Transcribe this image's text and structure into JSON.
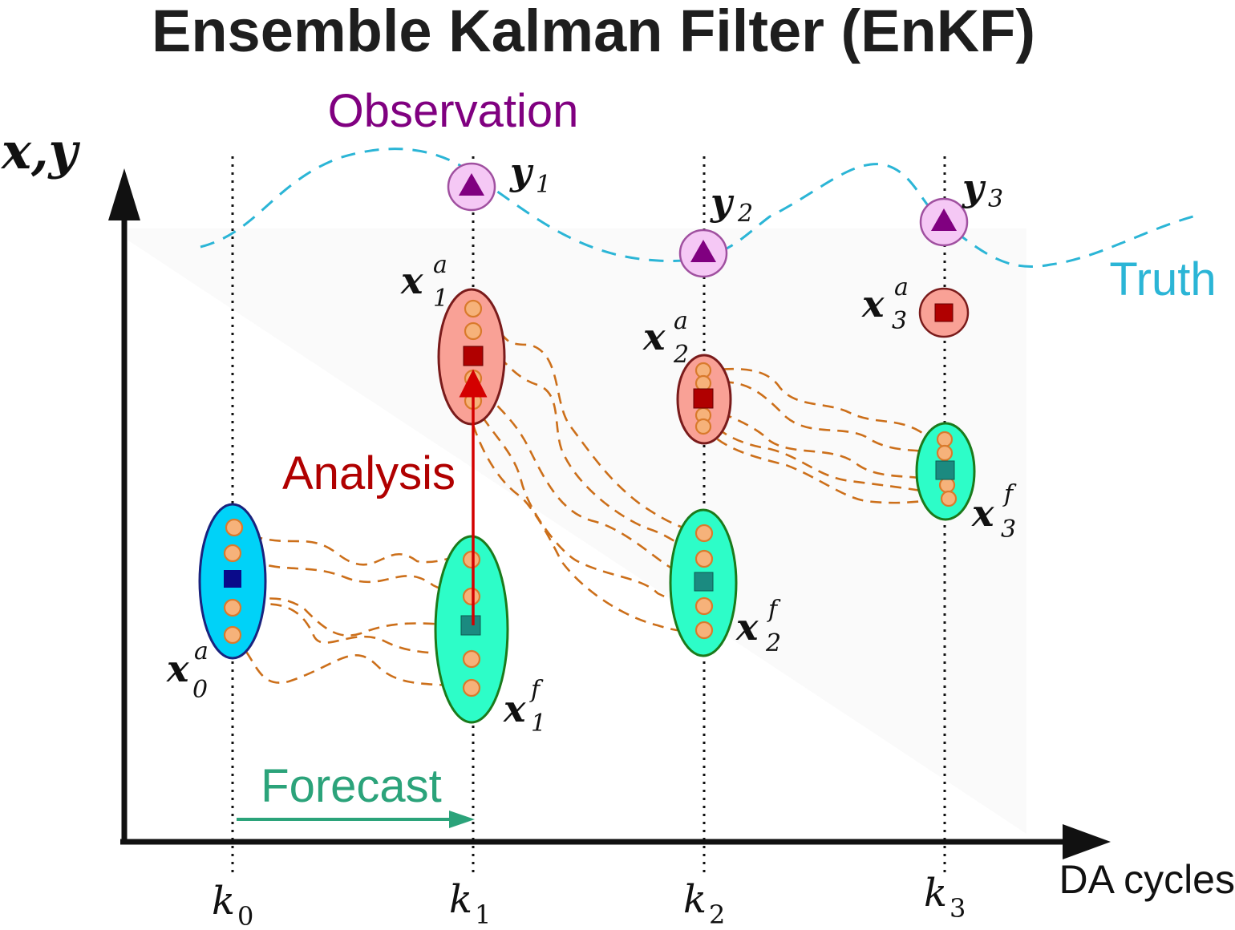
{
  "title": "Ensemble Kalman Filter (EnKF)",
  "labels": {
    "observation": "Observation",
    "truth": "Truth",
    "analysis": "Analysis",
    "forecast": "Forecast",
    "y_axis": "x,y",
    "x_axis": "DA cycles"
  },
  "cycles": [
    {
      "k": "k",
      "sub": "0"
    },
    {
      "k": "k",
      "sub": "1"
    },
    {
      "k": "k",
      "sub": "2"
    },
    {
      "k": "k",
      "sub": "3"
    }
  ],
  "state_labels": {
    "x0a": {
      "base": "x",
      "sub": "0",
      "sup": "a"
    },
    "x1a": {
      "base": "x",
      "sub": "1",
      "sup": "a"
    },
    "x1f": {
      "base": "x",
      "sub": "1",
      "sup": "f"
    },
    "x2a": {
      "base": "x",
      "sub": "2",
      "sup": "a"
    },
    "x2f": {
      "base": "x",
      "sub": "2",
      "sup": "f"
    },
    "x3a": {
      "base": "x",
      "sub": "3",
      "sup": "a"
    },
    "x3f": {
      "base": "x",
      "sub": "3",
      "sup": "f"
    }
  },
  "observations": [
    {
      "base": "y",
      "sub": "1"
    },
    {
      "base": "y",
      "sub": "2"
    },
    {
      "base": "y",
      "sub": "3"
    }
  ],
  "colors": {
    "title": "#1e1e1e",
    "observation": "#800080",
    "truth": "#2bb5d6",
    "analysis": "#b00000",
    "forecast": "#2ba37a",
    "forecast_ellipse": "#2dfdc8",
    "analysis_ellipse": "#f9a196",
    "initial_ellipse": "#00d2f8",
    "trajectory": "#cc6f1a",
    "member": "#f6b27a"
  }
}
